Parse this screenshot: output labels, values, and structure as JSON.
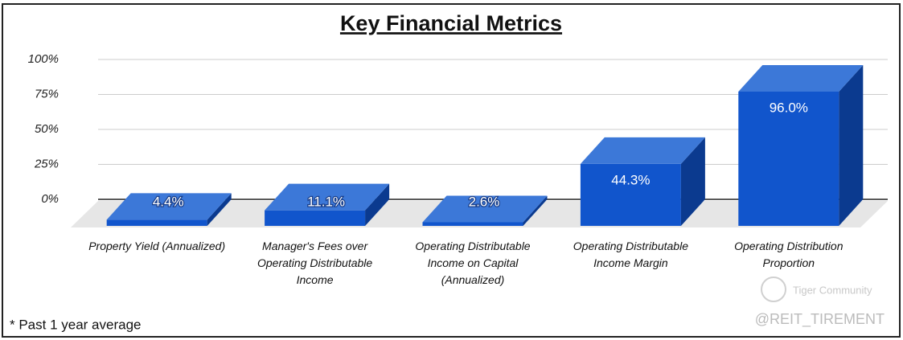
{
  "chart_data": {
    "type": "bar3d",
    "title": "Key Financial Metrics",
    "categories": [
      "Property Yield (Annualized)",
      "Manager's Fees over Operating Distributable Income",
      "Operating Distributable Income on Capital (Annualized)",
      "Operating Distributable Income Margin",
      "Operating Distribution Proportion"
    ],
    "values": [
      4.4,
      11.1,
      2.6,
      44.3,
      96.0
    ],
    "value_labels": [
      "4.4%",
      "11.1%",
      "2.6%",
      "44.3%",
      "96.0%"
    ],
    "color": "#1155cc",
    "ylim": [
      0,
      100
    ],
    "yticks": [
      {
        "value": 0,
        "label": "0%"
      },
      {
        "value": 25,
        "label": "25%"
      },
      {
        "value": 50,
        "label": "50%"
      },
      {
        "value": 75,
        "label": "75%"
      },
      {
        "value": 100,
        "label": "100%"
      }
    ],
    "grid": true,
    "note": "* Past 1 year average",
    "watermark": "Tiger Community",
    "credit": "@REIT_TIREMENT"
  }
}
